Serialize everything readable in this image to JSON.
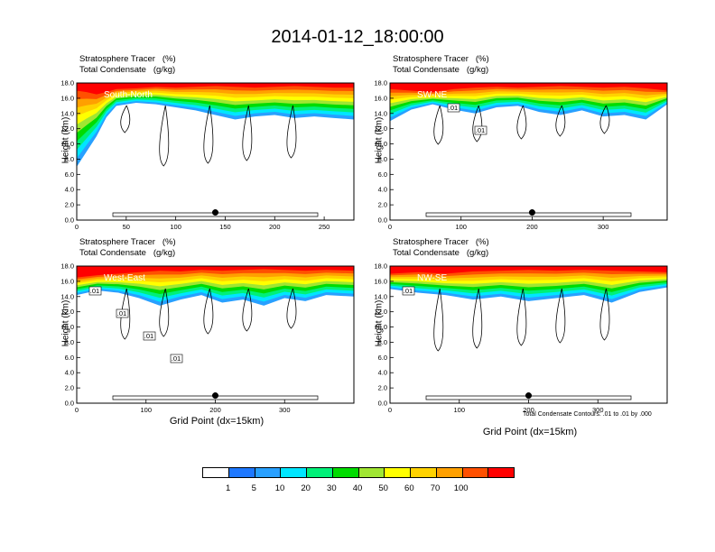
{
  "title": "2014-01-12_18:00:00",
  "contour_note": "Total Condensate Contours: .01 to .01 by .000",
  "colorbar": {
    "colors": [
      "#ffffff",
      "#1e78ff",
      "#28a0ff",
      "#00e6ff",
      "#00f078",
      "#00dc00",
      "#a0e632",
      "#ffff00",
      "#ffd200",
      "#ffa000",
      "#ff5000",
      "#ff0000"
    ],
    "labels": [
      "1",
      "5",
      "10",
      "20",
      "30",
      "40",
      "50",
      "60",
      "70",
      "100"
    ]
  },
  "chart_data": [
    {
      "type": "area",
      "title_line1": "Stratosphere Tracer   (%)",
      "title_line2": "Total Condensate   (g/kg)",
      "direction_label": "South-North",
      "ylabel": "Height (km)",
      "xlabel": "",
      "xlim": [
        0,
        280
      ],
      "xticks": [
        "0",
        "50",
        "100",
        "150",
        "200",
        "250"
      ],
      "ylim": [
        0,
        18
      ],
      "yticks": [
        "0.0",
        "2.0",
        "4.0",
        "6.0",
        "8.0",
        "10.0",
        "12.0",
        "14.0",
        "16.0",
        "18.0"
      ],
      "marker_x": 140,
      "contour_labels": [],
      "series": [
        {
          "x": [
            0,
            10,
            20,
            30,
            40,
            60,
            80,
            100,
            120,
            140,
            160,
            180,
            200,
            220,
            240,
            260,
            280
          ],
          "red_base": [
            17.0,
            16.8,
            16.5,
            16.8,
            17.2,
            17.3,
            17.5,
            17.4,
            17.5,
            17.6,
            17.5,
            17.4,
            17.5,
            17.6,
            17.5,
            17.4,
            17.4
          ]
        },
        {
          "x": [
            0,
            10,
            20,
            30,
            40,
            60,
            80,
            100,
            120,
            140,
            160,
            180,
            200,
            220,
            240,
            260,
            280
          ],
          "blue_base": [
            7.0,
            9.0,
            11.0,
            13.5,
            15.0,
            15.4,
            15.2,
            14.8,
            14.4,
            13.8,
            13.2,
            13.6,
            13.8,
            13.4,
            13.6,
            13.4,
            13.2
          ]
        }
      ]
    },
    {
      "type": "area",
      "title_line1": "Stratosphere Tracer   (%)",
      "title_line2": "Total Condensate   (g/kg)",
      "direction_label": "SW-NE",
      "ylabel": "Height (km)",
      "xlabel": "",
      "xlim": [
        0,
        390
      ],
      "xticks": [
        "0",
        "100",
        "200",
        "300"
      ],
      "ylim": [
        0,
        18
      ],
      "yticks": [
        "0.0",
        "2.0",
        "4.0",
        "6.0",
        "8.0",
        "10.0",
        "12.0",
        "14.0",
        "16.0",
        "18.0"
      ],
      "marker_x": 200,
      "contour_labels": [
        ".01",
        ".01"
      ],
      "series": [
        {
          "x": [
            0,
            30,
            60,
            90,
            120,
            150,
            180,
            210,
            240,
            270,
            300,
            330,
            360,
            390
          ],
          "red_base": [
            17.2,
            17.0,
            16.8,
            17.2,
            17.4,
            17.5,
            17.4,
            17.5,
            17.6,
            17.5,
            17.4,
            17.5,
            17.3,
            17.0
          ]
        },
        {
          "x": [
            0,
            30,
            60,
            90,
            120,
            150,
            180,
            210,
            240,
            270,
            300,
            330,
            360,
            390
          ],
          "blue_base": [
            13.0,
            14.5,
            15.2,
            14.5,
            14.0,
            14.8,
            15.0,
            14.2,
            13.8,
            14.4,
            13.6,
            13.8,
            13.2,
            15.2
          ]
        }
      ]
    },
    {
      "type": "area",
      "title_line1": "Stratosphere Tracer   (%)",
      "title_line2": "Total Condensate   (g/kg)",
      "direction_label": "West-East",
      "ylabel": "Height (km)",
      "xlabel": "Grid Point (dx=15km)",
      "xlim": [
        0,
        400
      ],
      "xticks": [
        "0",
        "100",
        "200",
        "300"
      ],
      "ylim": [
        0,
        18
      ],
      "yticks": [
        "0.0",
        "2.0",
        "4.0",
        "6.0",
        "8.0",
        "10.0",
        "12.0",
        "14.0",
        "16.0",
        "18.0"
      ],
      "marker_x": 200,
      "contour_labels": [
        ".01",
        ".01",
        ".01",
        ".01"
      ],
      "series": [
        {
          "x": [
            0,
            30,
            60,
            90,
            120,
            150,
            180,
            210,
            240,
            270,
            300,
            330,
            360,
            400
          ],
          "red_base": [
            16.5,
            16.8,
            17.0,
            17.2,
            17.4,
            17.3,
            17.5,
            17.4,
            17.5,
            17.6,
            17.5,
            17.4,
            17.5,
            17.4
          ]
        },
        {
          "x": [
            0,
            30,
            60,
            90,
            120,
            150,
            180,
            210,
            240,
            270,
            300,
            330,
            360,
            400
          ],
          "blue_base": [
            14.2,
            14.8,
            14.5,
            13.8,
            12.8,
            13.6,
            14.2,
            13.2,
            13.6,
            12.8,
            13.8,
            13.4,
            14.2,
            14.0
          ]
        }
      ]
    },
    {
      "type": "area",
      "title_line1": "Stratosphere Tracer   (%)",
      "title_line2": "Total Condensate   (g/kg)",
      "direction_label": "NW-SE",
      "ylabel": "Height (km)",
      "xlabel": "Grid Point (dx=15km)",
      "xlim": [
        0,
        400
      ],
      "xticks": [
        "0",
        "100",
        "200",
        "300"
      ],
      "ylim": [
        0,
        18
      ],
      "yticks": [
        "0.0",
        "2.0",
        "4.0",
        "6.0",
        "8.0",
        "10.0",
        "12.0",
        "14.0",
        "16.0",
        "18.0"
      ],
      "marker_x": 200,
      "contour_labels": [
        ".01"
      ],
      "series": [
        {
          "x": [
            0,
            40,
            80,
            120,
            160,
            200,
            240,
            280,
            320,
            360,
            400
          ],
          "red_base": [
            17.0,
            17.2,
            17.0,
            17.3,
            17.4,
            17.5,
            17.4,
            17.5,
            17.4,
            17.3,
            17.2
          ]
        },
        {
          "x": [
            0,
            40,
            80,
            120,
            160,
            200,
            240,
            280,
            320,
            360,
            400
          ],
          "blue_base": [
            15.0,
            14.5,
            14.2,
            13.6,
            14.0,
            13.4,
            13.8,
            14.2,
            13.2,
            14.6,
            15.2
          ]
        }
      ]
    }
  ]
}
